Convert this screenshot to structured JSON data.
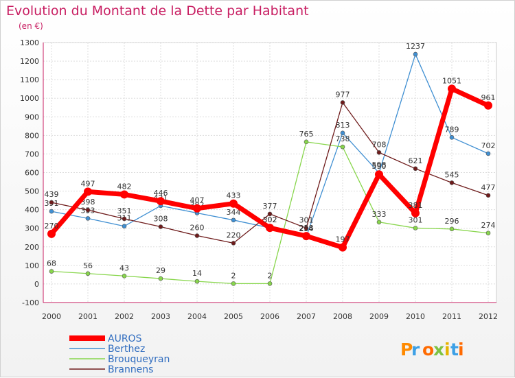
{
  "chart_data": {
    "type": "line",
    "title": "Evolution du Montant de la Dette par Habitant",
    "subtitle": "(en €)",
    "x": [
      "2000",
      "2001",
      "2002",
      "2003",
      "2004",
      "2005",
      "2006",
      "2007",
      "2008",
      "2009",
      "2010",
      "2011",
      "2012"
    ],
    "ylim": [
      -100,
      1300
    ],
    "yticks": [
      -100,
      0,
      100,
      200,
      300,
      400,
      500,
      600,
      700,
      800,
      900,
      1000,
      1100,
      1200,
      1300
    ],
    "grid": true,
    "legend_position": "bottom-left",
    "series": [
      {
        "name": "Berthez",
        "color": "#3f8fd2",
        "values": [
          391,
          353,
          311,
          421,
          382,
          344,
          302,
          254,
          813,
          598,
          1237,
          789,
          702
        ]
      },
      {
        "name": "Brouqueyran",
        "color": "#88d64c",
        "values": [
          68,
          56,
          43,
          29,
          14,
          2,
          2,
          765,
          738,
          333,
          301,
          296,
          274
        ]
      },
      {
        "name": "Brannens",
        "color": "#6e1b1b",
        "values": [
          439,
          398,
          351,
          308,
          260,
          220,
          377,
          301,
          977,
          708,
          621,
          545,
          477
        ]
      },
      {
        "name": "AUROS",
        "color": "#ff0000",
        "values": [
          270,
          497,
          482,
          446,
          407,
          433,
          302,
          258,
          197,
          590,
          381,
          1051,
          961
        ]
      }
    ]
  },
  "branding": {
    "logo_text": "Proxiti"
  }
}
